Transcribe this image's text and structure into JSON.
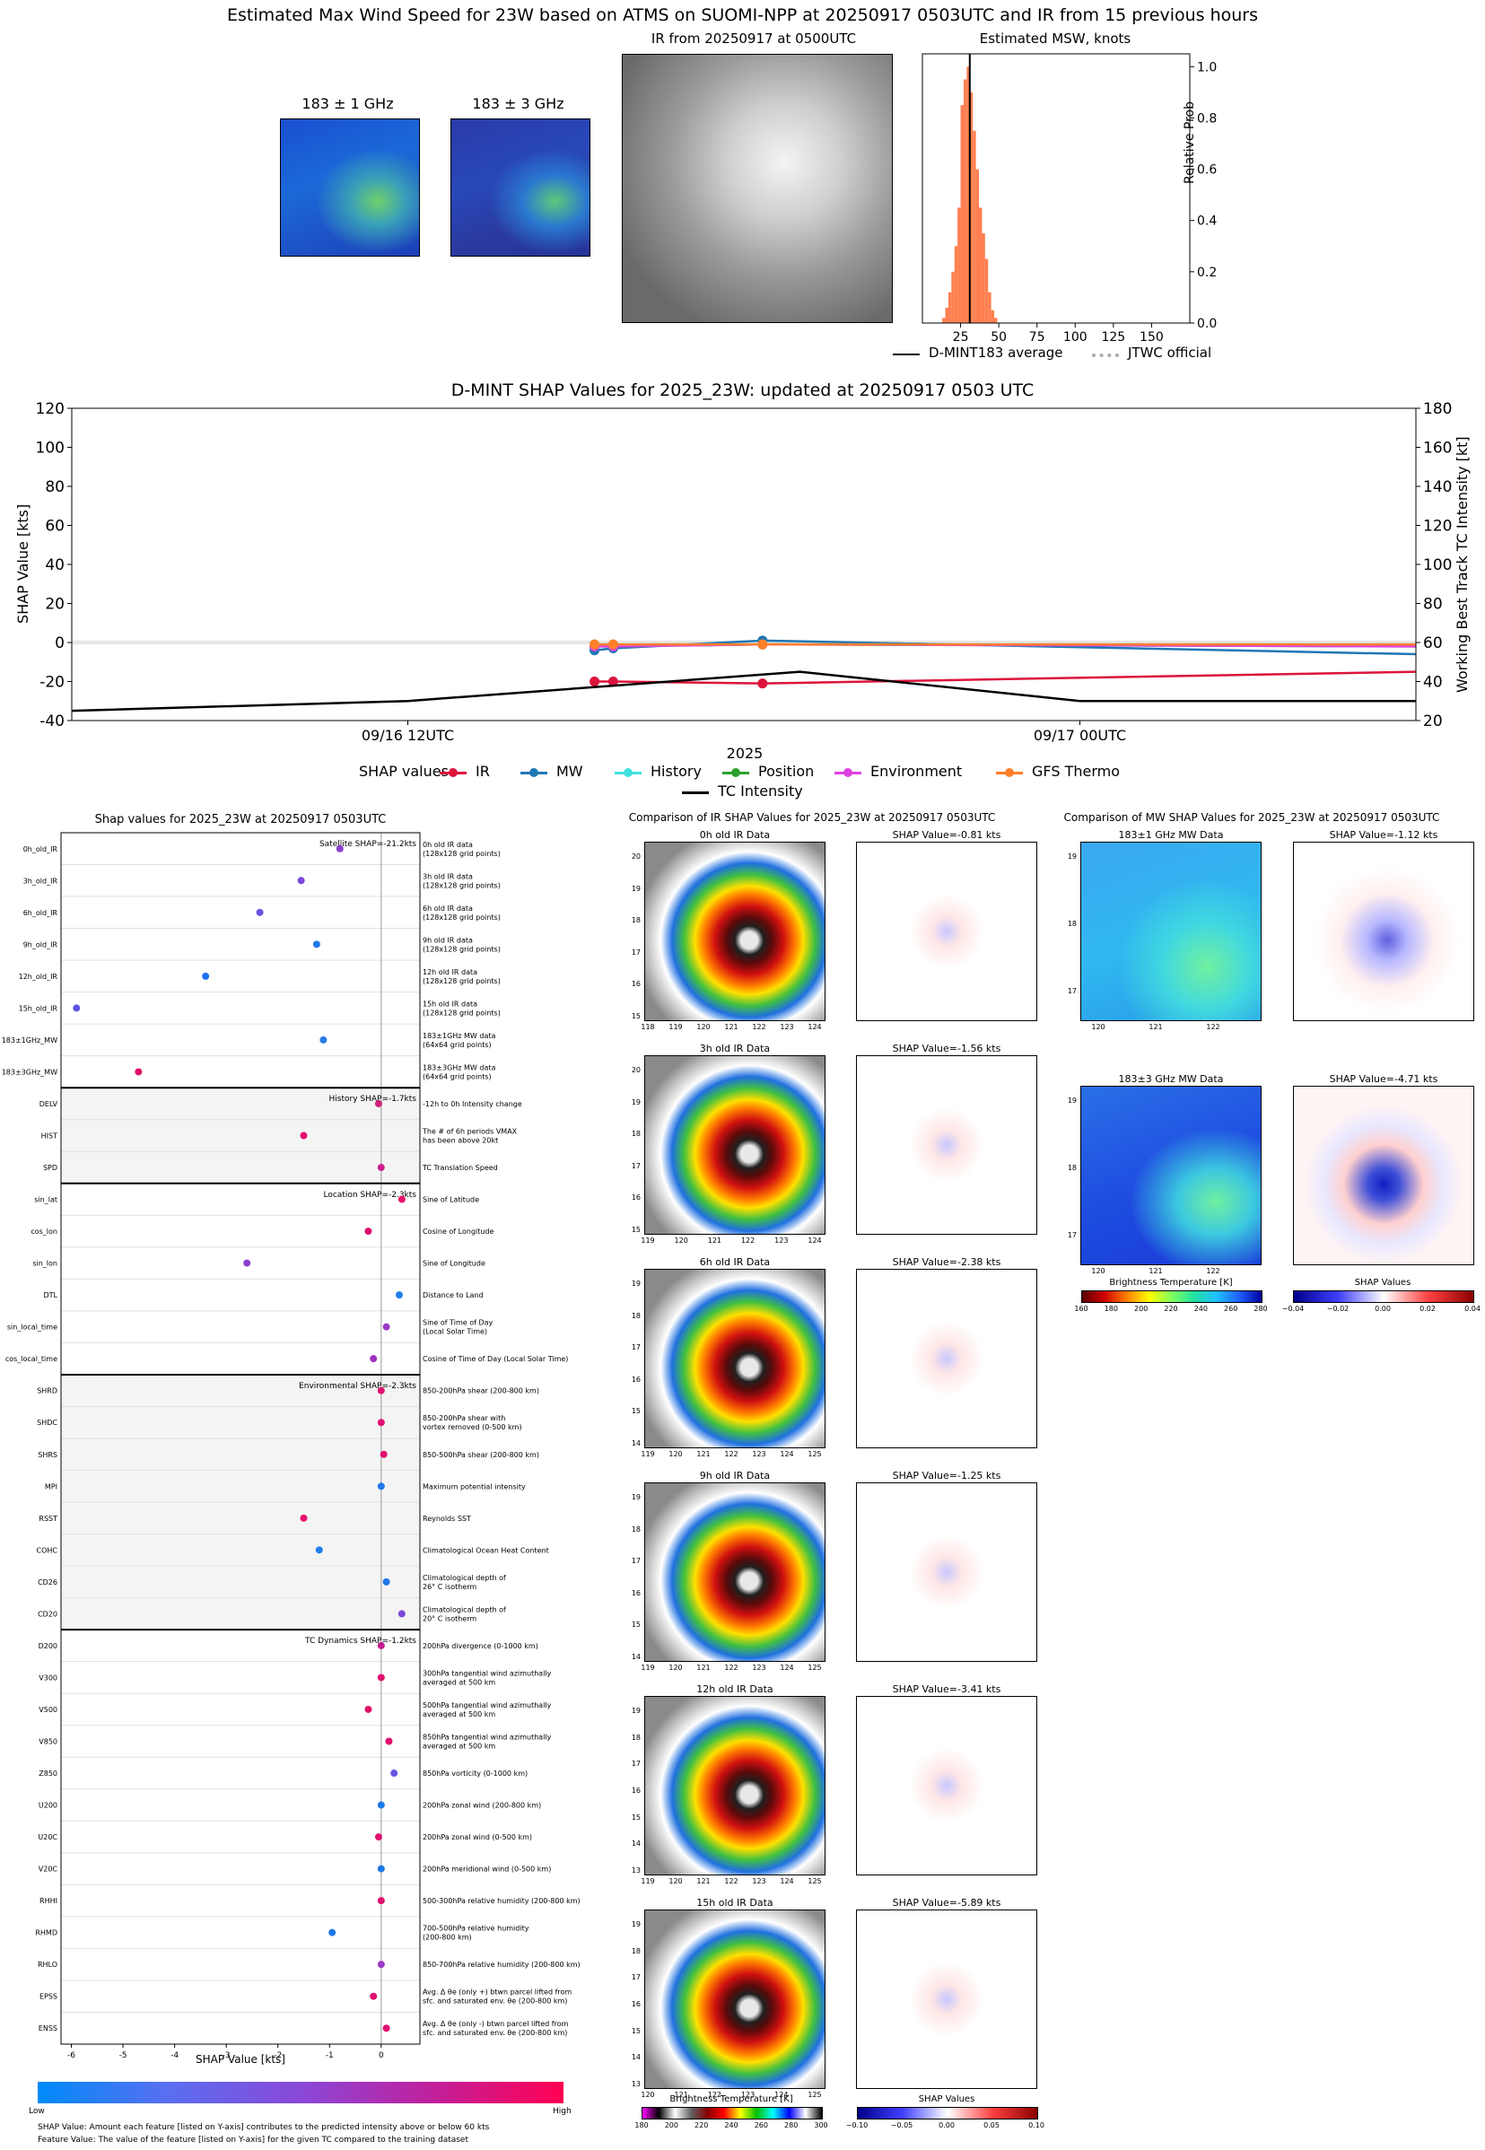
{
  "header": {
    "title": "Estimated Max Wind Speed for 23W based on ATMS on SUOMI-NPP at 20250917 0503UTC and IR from 15 previous hours",
    "mw1_title": "183 ± 1 GHz",
    "mw3_title": "183 ± 3 GHz",
    "ir_title": "IR from 20250917 at 0500UTC",
    "hist_title": "Estimated MSW, knots",
    "hist_ylabel": "Relative Prob",
    "legend_dmint": "D-MINT183 average",
    "legend_jtwc": "JTWC official",
    "colors": {
      "hist_bar": "#ff7f50",
      "dmint_line": "#000000",
      "jtwc_line": "#aaaaaa"
    }
  },
  "shap_timeseries": {
    "title": "D-MINT SHAP Values for 2025_23W: updated at 20250917 0503 UTC",
    "ylabel_left": "SHAP Value [kts]",
    "ylabel_right": "Working Best Track TC Intensity [kt]",
    "xlabel": "2025",
    "legend_title": "SHAP values:",
    "tc_legend": "TC Intensity"
  },
  "feature_chart": {
    "title": "Shap values for 2025_23W at 20250917 0503UTC",
    "xlabel": "SHAP Value [kts]",
    "group_labels": [
      "Satellite SHAP=-21.2kts",
      "History SHAP=-1.7kts",
      "Location SHAP=-2.3kts",
      "Environmental SHAP=-2.3kts",
      "TC Dynamics SHAP=-1.2kts"
    ],
    "colorbar_low": "Low",
    "colorbar_high": "High",
    "footnote1": "SHAP Value: Amount each feature [listed on Y-axis] contributes to the predicted intensity above or below 60 kts",
    "footnote2": "Feature Value: The value of the feature [listed on Y-axis] for the given TC compared to the training dataset"
  },
  "ir_comparison": {
    "title": "Comparison of IR SHAP Values for 2025_23W at 20250917 0503UTC",
    "panels": [
      {
        "label": "0h old IR Data",
        "shap": "SHAP Value=-0.81 kts",
        "yticks": [
          "20",
          "19",
          "18",
          "17",
          "16",
          "15"
        ],
        "xticks": [
          "118",
          "119",
          "120",
          "121",
          "122",
          "123",
          "124"
        ]
      },
      {
        "label": "3h old IR Data",
        "shap": "SHAP Value=-1.56 kts",
        "yticks": [
          "20",
          "19",
          "18",
          "17",
          "16",
          "15"
        ],
        "xticks": [
          "119",
          "120",
          "121",
          "122",
          "123",
          "124"
        ]
      },
      {
        "label": "6h old IR Data",
        "shap": "SHAP Value=-2.38 kts",
        "yticks": [
          "19",
          "18",
          "17",
          "16",
          "15",
          "14"
        ],
        "xticks": [
          "119",
          "120",
          "121",
          "122",
          "123",
          "124",
          "125"
        ]
      },
      {
        "label": "9h old IR Data",
        "shap": "SHAP Value=-1.25 kts",
        "yticks": [
          "19",
          "18",
          "17",
          "16",
          "15",
          "14"
        ],
        "xticks": [
          "119",
          "120",
          "121",
          "122",
          "123",
          "124",
          "125"
        ]
      },
      {
        "label": "12h old IR Data",
        "shap": "SHAP Value=-3.41 kts",
        "yticks": [
          "19",
          "18",
          "17",
          "16",
          "15",
          "14",
          "13"
        ],
        "xticks": [
          "119",
          "120",
          "121",
          "122",
          "123",
          "124",
          "125"
        ]
      },
      {
        "label": "15h old IR Data",
        "shap": "SHAP Value=-5.89 kts",
        "yticks": [
          "19",
          "18",
          "17",
          "16",
          "15",
          "14",
          "13"
        ],
        "xticks": [
          "120",
          "121",
          "122",
          "123",
          "124",
          "125"
        ]
      }
    ],
    "cbar_bt_label": "Brightness Temperature [K]",
    "cbar_bt_ticks": [
      "180",
      "200",
      "220",
      "240",
      "260",
      "280",
      "300"
    ],
    "cbar_shap_label": "SHAP Values",
    "cbar_shap_ticks": [
      "−0.10",
      "−0.05",
      "0.00",
      "0.05",
      "0.10"
    ]
  },
  "mw_comparison": {
    "title": "Comparison of MW SHAP Values for 2025_23W at 20250917 0503UTC",
    "panels": [
      {
        "label": "183±1 GHz MW Data",
        "shap": "SHAP Value=-1.12 kts",
        "yticks": [
          "19",
          "18",
          "17"
        ],
        "xticks": [
          "120",
          "121",
          "122"
        ]
      },
      {
        "label": "183±3 GHz MW Data",
        "shap": "SHAP Value=-4.71 kts",
        "yticks": [
          "19",
          "18",
          "17"
        ],
        "xticks": [
          "120",
          "121",
          "122"
        ]
      }
    ],
    "cbar_bt_label": "Brightness Temperature [K]",
    "cbar_bt_ticks": [
      "160",
      "180",
      "200",
      "220",
      "240",
      "260",
      "280"
    ],
    "cbar_shap_label": "SHAP Values",
    "cbar_shap_ticks": [
      "−0.04",
      "−0.02",
      "0.00",
      "0.02",
      "0.04"
    ]
  },
  "chart_data": [
    {
      "type": "bar",
      "title": "Estimated MSW, knots",
      "xlabel": "",
      "ylabel": "Relative Prob",
      "xlim": [
        0,
        175
      ],
      "ylim": [
        0,
        1.05
      ],
      "xticks": [
        25,
        50,
        75,
        100,
        125,
        150
      ],
      "yticks": [
        0.0,
        0.2,
        0.4,
        0.6,
        0.8,
        1.0
      ],
      "bin_width": 2,
      "x": [
        14,
        16,
        18,
        20,
        22,
        24,
        26,
        28,
        30,
        32,
        34,
        36,
        38,
        40,
        42,
        44,
        46,
        48
      ],
      "values": [
        0.02,
        0.06,
        0.12,
        0.2,
        0.3,
        0.45,
        0.85,
        0.95,
        1.0,
        0.9,
        0.75,
        0.6,
        0.45,
        0.35,
        0.25,
        0.12,
        0.05,
        0.02
      ],
      "dmint_average": 31,
      "jtwc_official": null
    },
    {
      "type": "line",
      "title": "D-MINT SHAP Values for 2025_23W: updated at 20250917 0503 UTC",
      "xlabel": "2025",
      "ylabel": "SHAP Value [kts]",
      "ylim": [
        -40,
        120
      ],
      "y2lim": [
        20,
        180
      ],
      "ylabel2": "Working Best Track TC Intensity [kt]",
      "x_hours": [
        0,
        18,
        33,
        44,
        63,
        72
      ],
      "xtick_labels": [
        {
          "h": 18,
          "label": "09/16 12UTC"
        },
        {
          "h": 54,
          "label": "09/17 00UTC"
        }
      ],
      "yticks": [
        -40,
        -20,
        0,
        20,
        40,
        60,
        80,
        100,
        120
      ],
      "y2ticks": [
        20,
        40,
        60,
        80,
        100,
        120,
        140,
        160,
        180
      ],
      "series": [
        {
          "name": "IR",
          "color": "#dc143c",
          "x": [
            28,
            29,
            37,
            72
          ],
          "values": [
            -20,
            -20,
            -21,
            -15
          ]
        },
        {
          "name": "MW",
          "color": "#1f77b4",
          "x": [
            28,
            29,
            37,
            72
          ],
          "values": [
            -4,
            -3,
            1,
            -6
          ]
        },
        {
          "name": "History",
          "color": "#40e0e0",
          "x": [
            28,
            29,
            37,
            72
          ],
          "values": [
            -1,
            -1,
            -1,
            -1
          ]
        },
        {
          "name": "Position",
          "color": "#2ca02c",
          "x": [
            28,
            29,
            37,
            72
          ],
          "values": [
            -2,
            -2,
            -1,
            -2
          ]
        },
        {
          "name": "Environment",
          "color": "#e040e0",
          "x": [
            28,
            29,
            37,
            72
          ],
          "values": [
            -2,
            -2,
            -1,
            -2
          ]
        },
        {
          "name": "GFS Thermo",
          "color": "#ff7f2a",
          "x": [
            28,
            29,
            37,
            72
          ],
          "values": [
            -1,
            -1,
            -1,
            -1
          ]
        }
      ],
      "tc_intensity": {
        "name": "TC Intensity",
        "color": "#000000",
        "x": [
          0,
          18,
          39,
          54,
          72
        ],
        "values": [
          25,
          30,
          45,
          30,
          30
        ]
      }
    },
    {
      "type": "scatter",
      "title": "Shap values for 2025_23W at 20250917 0503UTC",
      "xlabel": "SHAP Value [kts]",
      "xlim": [
        -6.2,
        0.75
      ],
      "xticks": [
        -6,
        -5,
        -4,
        -3,
        -2,
        -1,
        0
      ],
      "features": [
        {
          "name": "0h_old_IR",
          "desc": "0h old IR data\n(128x128 grid points)",
          "value": -0.8,
          "color": "#8a3fd0",
          "group": 0
        },
        {
          "name": "3h_old_IR",
          "desc": "3h old IR data\n(128x128 grid points)",
          "value": -1.55,
          "color": "#7a48d8",
          "group": 0
        },
        {
          "name": "6h_old_IR",
          "desc": "6h old IR data\n(128x128 grid points)",
          "value": -2.35,
          "color": "#6655e0",
          "group": 0
        },
        {
          "name": "9h_old_IR",
          "desc": "9h old IR data\n(128x128 grid points)",
          "value": -1.25,
          "color": "#1f78e8",
          "group": 0
        },
        {
          "name": "12h_old_IR",
          "desc": "12h old IR data\n(128x128 grid points)",
          "value": -3.4,
          "color": "#1f70f0",
          "group": 0
        },
        {
          "name": "15h_old_IR",
          "desc": "15h old IR data\n(128x128 grid points)",
          "value": -5.9,
          "color": "#5a55e8",
          "group": 0
        },
        {
          "name": "183±1GHz_MW",
          "desc": "183±1GHz MW data\n(64x64 grid points)",
          "value": -1.12,
          "color": "#2a7ae8",
          "group": 0
        },
        {
          "name": "183±3GHz_MW",
          "desc": "183±3GHz MW data\n(64x64 grid points)",
          "value": -4.7,
          "color": "#e0106a",
          "group": 0
        },
        {
          "name": "DELV",
          "desc": "-12h to 0h Intensity change",
          "value": -0.05,
          "color": "#d0207a",
          "group": 1
        },
        {
          "name": "HIST",
          "desc": "The # of 6h periods VMAX\nhas been above 20kt",
          "value": -1.5,
          "color": "#e8106a",
          "group": 1
        },
        {
          "name": "SPD",
          "desc": "TC Translation Speed",
          "value": 0.0,
          "color": "#d02090",
          "group": 1
        },
        {
          "name": "sin_lat",
          "desc": "Sine of Latitude",
          "value": 0.4,
          "color": "#e8106a",
          "group": 2
        },
        {
          "name": "cos_lon",
          "desc": "Cosine of Longitude",
          "value": -0.25,
          "color": "#e0106a",
          "group": 2
        },
        {
          "name": "sin_lon",
          "desc": "Sine of Longitude",
          "value": -2.6,
          "color": "#8a3fd0",
          "group": 2
        },
        {
          "name": "DTL",
          "desc": "Distance to Land",
          "value": 0.35,
          "color": "#2080e8",
          "group": 2
        },
        {
          "name": "sin_local_time",
          "desc": "Sine of Time of Day\n(Local Solar Time)",
          "value": 0.1,
          "color": "#9a3ac8",
          "group": 2
        },
        {
          "name": "cos_local_time",
          "desc": "Cosine of Time of Day (Local Solar Time)",
          "value": -0.15,
          "color": "#9a30c0",
          "group": 2
        },
        {
          "name": "SHRD",
          "desc": "850-200hPa shear (200-800 km)",
          "value": 0.0,
          "color": "#e01070",
          "group": 3
        },
        {
          "name": "SHDC",
          "desc": "850-200hPa shear with\nvortex removed (0-500 km)",
          "value": 0.0,
          "color": "#e01070",
          "group": 3
        },
        {
          "name": "SHRS",
          "desc": "850-500hPa shear (200-800 km)",
          "value": 0.05,
          "color": "#e01070",
          "group": 3
        },
        {
          "name": "MPI",
          "desc": "Maximum potential intensity",
          "value": 0.0,
          "color": "#1f78e8",
          "group": 3
        },
        {
          "name": "RSST",
          "desc": "Reynolds SST",
          "value": -1.5,
          "color": "#e8106a",
          "group": 3
        },
        {
          "name": "COHC",
          "desc": "Climatological Ocean Heat Content",
          "value": -1.2,
          "color": "#2080e8",
          "group": 3
        },
        {
          "name": "CD26",
          "desc": "Climatological depth of\n26° C isotherm",
          "value": 0.1,
          "color": "#1f78e8",
          "group": 3
        },
        {
          "name": "CD20",
          "desc": "Climatological depth of\n20° C isotherm",
          "value": 0.4,
          "color": "#7a48d8",
          "group": 3
        },
        {
          "name": "D200",
          "desc": "200hPa divergence (0-1000 km)",
          "value": 0.0,
          "color": "#c02090",
          "group": 4
        },
        {
          "name": "V300",
          "desc": "300hPa tangential wind azimuthally\naveraged at 500 km",
          "value": 0.0,
          "color": "#e01070",
          "group": 4
        },
        {
          "name": "V500",
          "desc": "500hPa tangential wind azimuthally\naveraged at 500 km",
          "value": -0.25,
          "color": "#e0106a",
          "group": 4
        },
        {
          "name": "V850",
          "desc": "850hPa tangential wind azimuthally\naveraged at 500 km",
          "value": 0.15,
          "color": "#e0106a",
          "group": 4
        },
        {
          "name": "Z850",
          "desc": "850hPa vorticity (0-1000 km)",
          "value": 0.25,
          "color": "#6655e0",
          "group": 4
        },
        {
          "name": "U200",
          "desc": "200hPa zonal wind (200-800 km)",
          "value": 0.0,
          "color": "#1f78e8",
          "group": 4
        },
        {
          "name": "U20C",
          "desc": "200hPa zonal wind (0-500 km)",
          "value": -0.05,
          "color": "#e01070",
          "group": 4
        },
        {
          "name": "V20C",
          "desc": "200hPa meridional wind (0-500 km)",
          "value": 0.0,
          "color": "#1f78e8",
          "group": 4
        },
        {
          "name": "RHHI",
          "desc": "500-300hPa relative humidity (200-800 km)",
          "value": 0.0,
          "color": "#e01070",
          "group": 4
        },
        {
          "name": "RHMD",
          "desc": "700-500hPa relative humidity\n(200-800 km)",
          "value": -0.95,
          "color": "#1f78e8",
          "group": 4
        },
        {
          "name": "RHLO",
          "desc": "850-700hPa relative humidity (200-800 km)",
          "value": 0.0,
          "color": "#9a3ac8",
          "group": 4
        },
        {
          "name": "EPSS",
          "desc": "Avg. Δ θe (only +) btwn parcel lifted from\nsfc. and saturated env. θe (200-800 km)",
          "value": -0.15,
          "color": "#e01070",
          "group": 4
        },
        {
          "name": "ENSS",
          "desc": "Avg. Δ θe (only -) btwn parcel lifted from\nsfc. and saturated env. θe (200-800 km)",
          "value": 0.1,
          "color": "#e01070",
          "group": 4
        }
      ]
    }
  ]
}
